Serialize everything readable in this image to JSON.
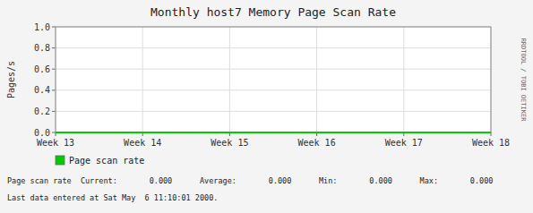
{
  "chart_data": {
    "type": "line",
    "title": "Monthly host7 Memory Page Scan Rate",
    "y_label": "Pages/s",
    "categories": [
      "Week 13",
      "Week 14",
      "Week 15",
      "Week 16",
      "Week 17",
      "Week 18"
    ],
    "series": [
      {
        "name": "Page scan rate",
        "color": "#00cc00",
        "values": [
          0,
          0,
          0,
          0,
          0,
          0
        ]
      }
    ],
    "ylim": [
      0,
      1
    ],
    "yticks": [
      {
        "value": 0,
        "label": "0.0"
      },
      0.2,
      0.4,
      0.6,
      0.8,
      {
        "value": 1,
        "label": "1.0"
      }
    ],
    "grid": true,
    "legend": "bottom",
    "annotations": [
      "Page scan rate  Current:       0.000      Average:       0.000      Min:       0.000      Max:       0.000",
      "Last data entered at Sat May  6 11:10:01 2000.",
      "RRDTOOL / TOBI OETIKER"
    ]
  }
}
